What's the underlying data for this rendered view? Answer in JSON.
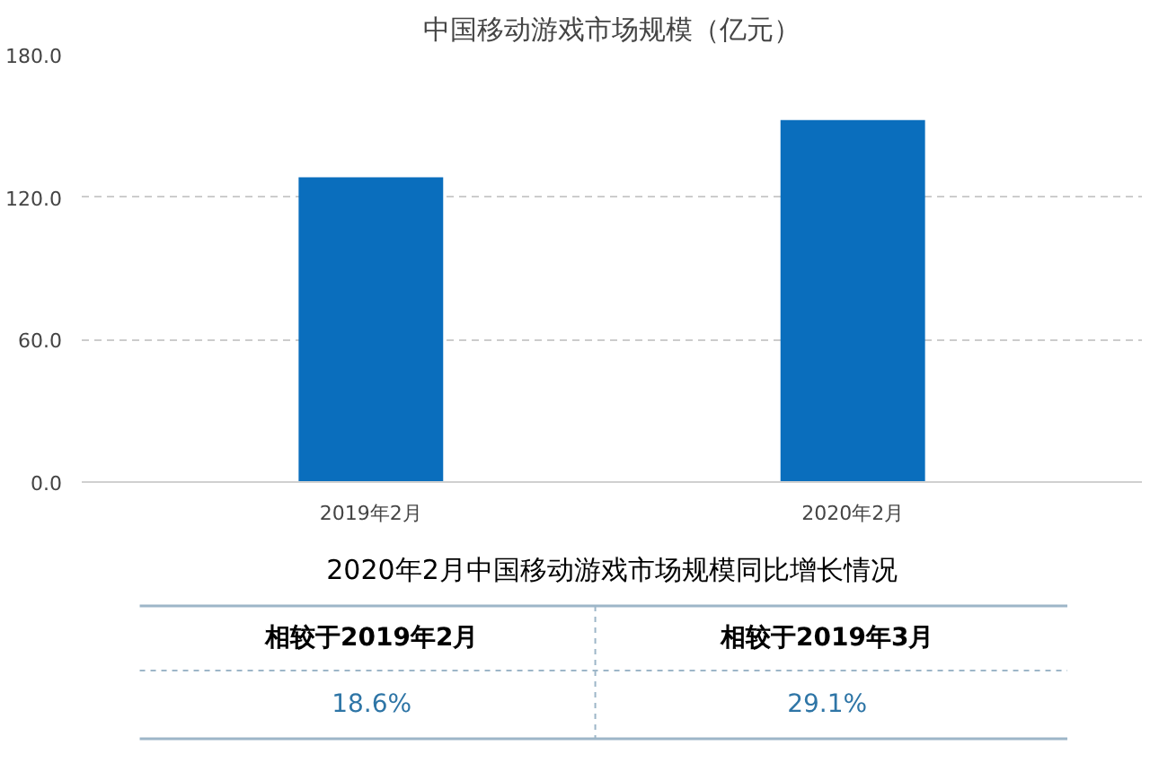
{
  "chart_data": {
    "type": "bar",
    "title": "中国移动游戏市场规模（亿元）",
    "categories": [
      "2019年2月",
      "2020年2月"
    ],
    "values": [
      128.4,
      152.5
    ],
    "color": "#0a6ebd",
    "ylim": [
      0,
      180
    ],
    "yticks": [
      {
        "value": 0,
        "label": "0.0"
      },
      {
        "value": 60,
        "label": "60.0"
      },
      {
        "value": 120,
        "label": "120.0"
      },
      {
        "value": 180,
        "label": "180.0"
      }
    ],
    "grid": "y",
    "annotations": [
      "2020年2月中国移动游戏市场规模同比增长情况",
      "相较于2019年2月",
      "相较于2019年3月",
      "18.6%",
      "29.1%"
    ]
  }
}
